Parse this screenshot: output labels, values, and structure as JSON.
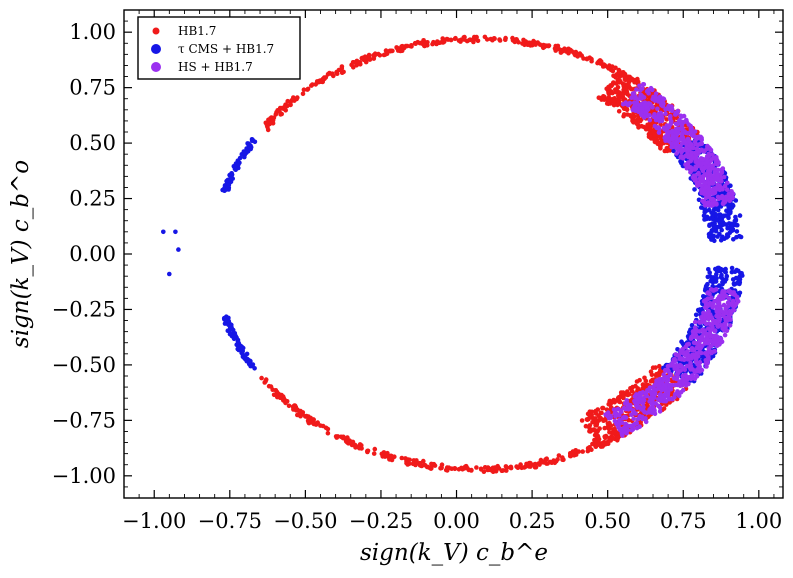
{
  "chart_data": {
    "type": "scatter",
    "title": "",
    "xlabel": "sign(k_V) c_b^e",
    "ylabel": "sign(k_V) c_b^o",
    "xlim": [
      -1.1,
      1.08
    ],
    "ylim": [
      -1.1,
      1.1
    ],
    "grid": false,
    "legend_position": "top-left",
    "x_ticks": [
      -1.0,
      -0.75,
      -0.5,
      -0.25,
      0.0,
      0.25,
      0.5,
      0.75,
      1.0
    ],
    "x_tick_labels": [
      "−1.00",
      "−0.75",
      "−0.50",
      "−0.25",
      "0.00",
      "0.25",
      "0.50",
      "0.75",
      "1.00"
    ],
    "y_ticks": [
      1.0,
      0.75,
      0.5,
      0.25,
      0.0,
      -0.25,
      -0.5,
      -0.75,
      -1.0
    ],
    "y_tick_labels": [
      "1.00",
      "0.75",
      "0.50",
      "0.25",
      "0.00",
      "−0.25",
      "−0.50",
      "−0.75",
      "−1.00"
    ],
    "series": [
      {
        "name": "HB1.7",
        "color": "#f01a1a",
        "marker": "circle",
        "segments": [
          {
            "kind": "ring",
            "center": [
              0.07,
              0.0
            ],
            "radius": [
              0.88,
              0.98
            ],
            "angle_deg": [
              52,
              145
            ],
            "width": 0.02,
            "jitter": 0.012,
            "count": 300
          },
          {
            "kind": "ring",
            "center": [
              0.07,
              0.0
            ],
            "radius": [
              0.88,
              0.98
            ],
            "angle_deg": [
              215,
              307
            ],
            "width": 0.02,
            "jitter": 0.012,
            "count": 300
          },
          {
            "kind": "ring",
            "center": [
              0.07,
              0.0
            ],
            "radius": [
              0.88,
              0.98
            ],
            "angle_deg": [
              33,
              58
            ],
            "width": 0.16,
            "jitter": 0.012,
            "count": 420
          },
          {
            "kind": "ring",
            "center": [
              0.07,
              0.0
            ],
            "radius": [
              0.88,
              0.98
            ],
            "angle_deg": [
              297,
              323
            ],
            "width": 0.16,
            "jitter": 0.012,
            "count": 380
          }
        ]
      },
      {
        "name": "τ CMS + HB1.7",
        "color": "#1616e6",
        "marker": "circle",
        "segments": [
          {
            "kind": "ring",
            "center": [
              0.07,
              0.0
            ],
            "radius": [
              0.88,
              0.98
            ],
            "angle_deg": [
              148,
              163
            ],
            "width": 0.015,
            "jitter": 0.008,
            "count": 80
          },
          {
            "kind": "ring",
            "center": [
              0.07,
              0.0
            ],
            "radius": [
              0.88,
              0.98
            ],
            "angle_deg": [
              197,
              212
            ],
            "width": 0.015,
            "jitter": 0.008,
            "count": 80
          },
          {
            "kind": "ring",
            "center": [
              0.07,
              0.0
            ],
            "radius": [
              0.88,
              0.98
            ],
            "angle_deg": [
              4,
              33
            ],
            "width": 0.13,
            "jitter": 0.01,
            "count": 380
          },
          {
            "kind": "ring",
            "center": [
              0.07,
              0.0
            ],
            "radius": [
              0.88,
              0.98
            ],
            "angle_deg": [
              323,
              356
            ],
            "width": 0.13,
            "jitter": 0.01,
            "count": 380
          }
        ],
        "points": [
          [
            -0.97,
            0.1
          ],
          [
            -0.93,
            0.1
          ],
          [
            -0.95,
            -0.09
          ],
          [
            -0.92,
            0.02
          ]
        ]
      },
      {
        "name": "HS + HB1.7",
        "color": "#9b30f0",
        "marker": "circle",
        "segments": [
          {
            "kind": "ring",
            "center": [
              0.07,
              0.0
            ],
            "radius": [
              0.88,
              0.98
            ],
            "angle_deg": [
              14,
              52
            ],
            "width": 0.12,
            "jitter": 0.01,
            "count": 520
          },
          {
            "kind": "ring",
            "center": [
              0.07,
              0.0
            ],
            "radius": [
              0.88,
              0.98
            ],
            "angle_deg": [
              303,
              350
            ],
            "width": 0.12,
            "jitter": 0.01,
            "count": 560
          }
        ]
      }
    ]
  }
}
